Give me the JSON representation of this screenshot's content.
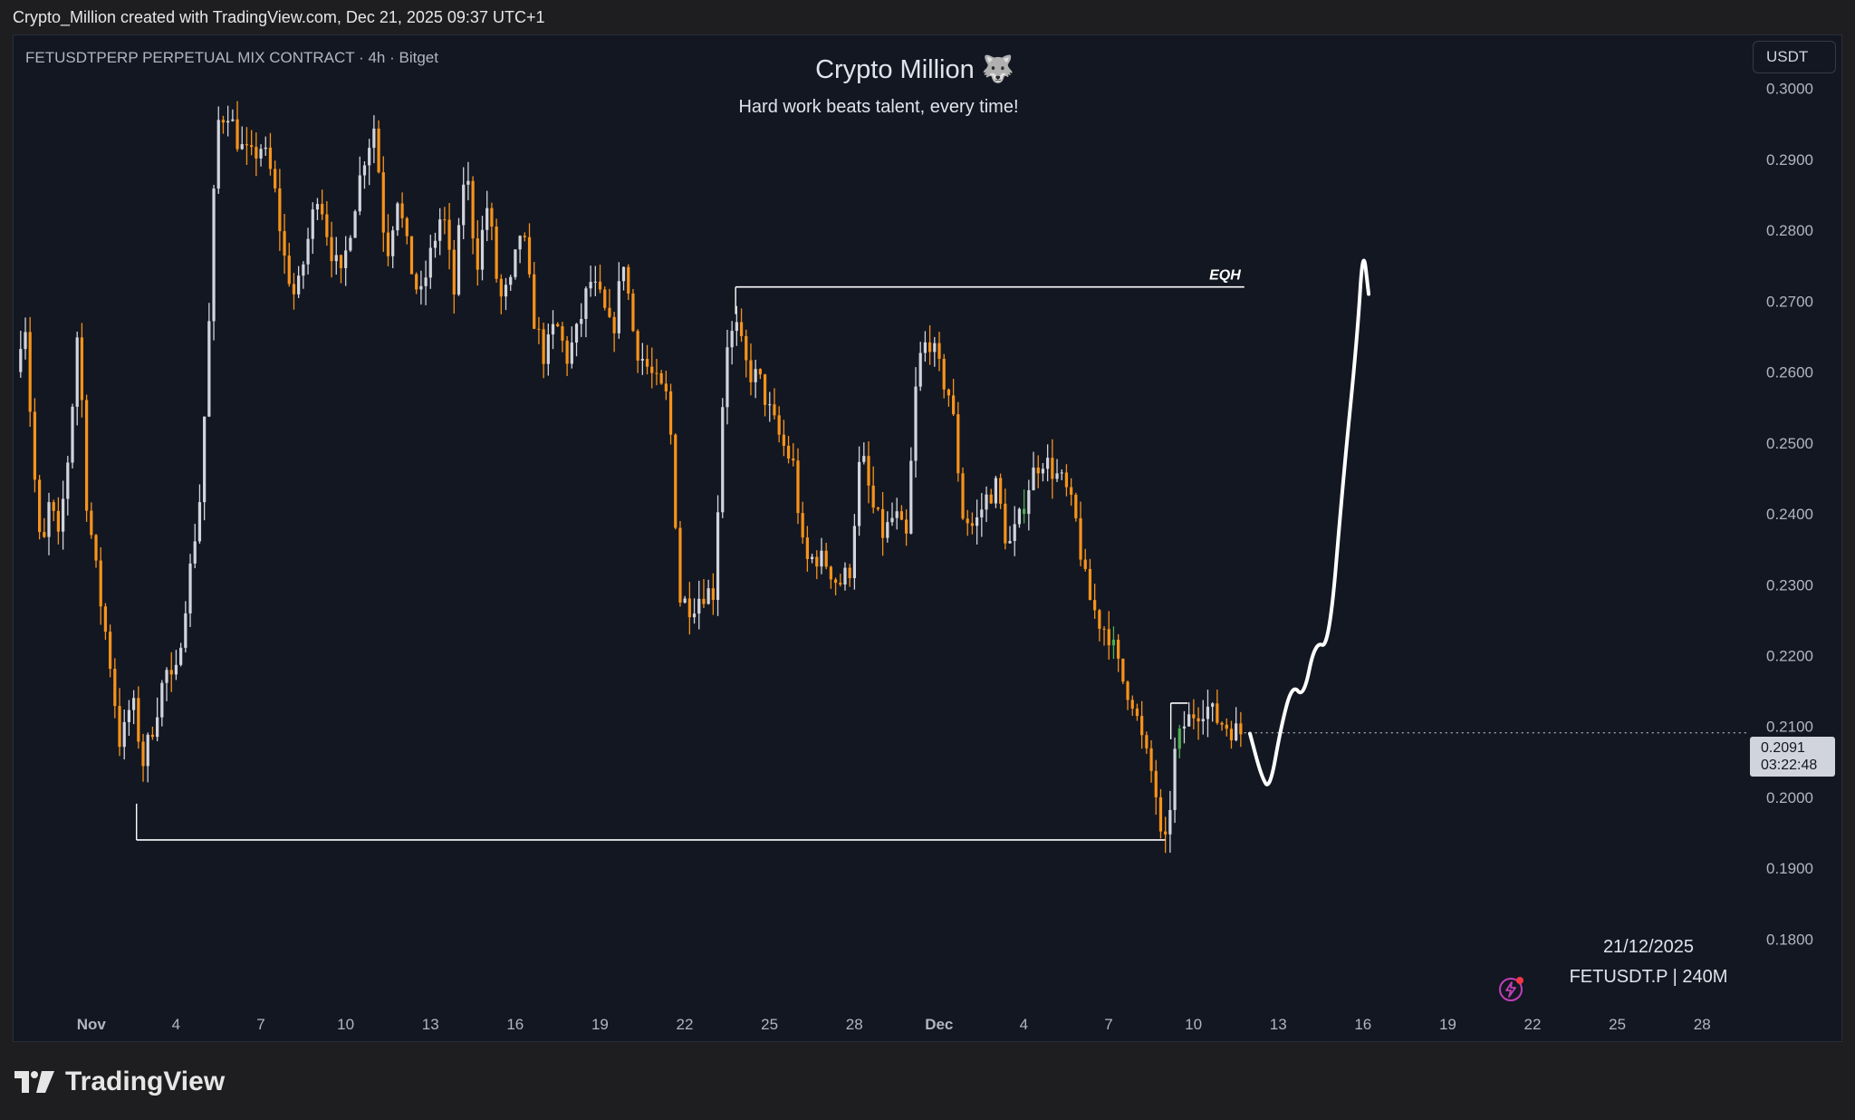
{
  "header": {
    "attribution": "Crypto_Million created with TradingView.com, Dec 21, 2025 09:37 UTC+1"
  },
  "chart_header": {
    "symbol_text": "FETUSDTPERP PERPETUAL MIX CONTRACT · 4h · Bitget"
  },
  "watermark": {
    "title": "Crypto Million 🐺",
    "subtitle": "Hard work beats talent, every time!"
  },
  "currency_button": "USDT",
  "last_price": {
    "value": "0.2091",
    "countdown": "03:22:48"
  },
  "info_box": {
    "date": "21/12/2025",
    "symbol": "FETUSDT.P | 240M"
  },
  "footer": {
    "brand": "TradingView"
  },
  "colors": {
    "background": "#131722",
    "bull_candle": "#d1d4dc",
    "bear_candle": "#f7931a",
    "highlight_candle": "#4caf50",
    "drawing": "#ffffff"
  },
  "chart_data": {
    "type": "candlestick",
    "ylim": [
      0.172,
      0.3075
    ],
    "y_ticks": [
      "0.3000",
      "0.2900",
      "0.2800",
      "0.2700",
      "0.2600",
      "0.2500",
      "0.2400",
      "0.2300",
      "0.2200",
      "0.2100",
      "0.2000",
      "0.1900",
      "0.1800"
    ],
    "x_ticks": [
      {
        "label": "Nov",
        "day": 0,
        "bold": true
      },
      {
        "label": "4",
        "day": 3
      },
      {
        "label": "7",
        "day": 6
      },
      {
        "label": "10",
        "day": 9
      },
      {
        "label": "13",
        "day": 12
      },
      {
        "label": "16",
        "day": 15
      },
      {
        "label": "19",
        "day": 18
      },
      {
        "label": "22",
        "day": 21
      },
      {
        "label": "25",
        "day": 24
      },
      {
        "label": "28",
        "day": 27
      },
      {
        "label": "Dec",
        "day": 30,
        "bold": true
      },
      {
        "label": "4",
        "day": 33
      },
      {
        "label": "7",
        "day": 36
      },
      {
        "label": "10",
        "day": 39
      },
      {
        "label": "13",
        "day": 42
      },
      {
        "label": "16",
        "day": 45
      },
      {
        "label": "19",
        "day": 48
      },
      {
        "label": "22",
        "day": 51
      },
      {
        "label": "25",
        "day": 54
      },
      {
        "label": "28",
        "day": 57
      }
    ],
    "x_start_day": -2.5,
    "candle_interval_days": 0.1667,
    "price_path": [
      [
        -2.5,
        0.26
      ],
      [
        -2.2,
        0.269
      ],
      [
        -1.9,
        0.248
      ],
      [
        -1.6,
        0.233
      ],
      [
        -1.3,
        0.242
      ],
      [
        -1.0,
        0.236
      ],
      [
        -0.6,
        0.25
      ],
      [
        -0.3,
        0.267
      ],
      [
        0.0,
        0.242
      ],
      [
        0.4,
        0.23
      ],
      [
        0.8,
        0.22
      ],
      [
        1.2,
        0.207
      ],
      [
        1.6,
        0.214
      ],
      [
        2.0,
        0.205
      ],
      [
        2.4,
        0.211
      ],
      [
        2.8,
        0.218
      ],
      [
        3.1,
        0.215
      ],
      [
        3.4,
        0.225
      ],
      [
        3.7,
        0.233
      ],
      [
        4.0,
        0.242
      ],
      [
        4.3,
        0.263
      ],
      [
        4.6,
        0.295
      ],
      [
        5.0,
        0.297
      ],
      [
        5.4,
        0.292
      ],
      [
        5.8,
        0.29
      ],
      [
        6.2,
        0.292
      ],
      [
        6.6,
        0.287
      ],
      [
        7.0,
        0.276
      ],
      [
        7.4,
        0.27
      ],
      [
        7.8,
        0.278
      ],
      [
        8.2,
        0.286
      ],
      [
        8.6,
        0.278
      ],
      [
        9.0,
        0.273
      ],
      [
        9.4,
        0.282
      ],
      [
        9.8,
        0.29
      ],
      [
        10.2,
        0.295
      ],
      [
        10.6,
        0.276
      ],
      [
        11.0,
        0.285
      ],
      [
        11.4,
        0.276
      ],
      [
        11.8,
        0.27
      ],
      [
        12.2,
        0.277
      ],
      [
        12.6,
        0.283
      ],
      [
        13.0,
        0.271
      ],
      [
        13.4,
        0.29
      ],
      [
        13.8,
        0.275
      ],
      [
        14.2,
        0.284
      ],
      [
        14.6,
        0.27
      ],
      [
        15.0,
        0.272
      ],
      [
        15.4,
        0.281
      ],
      [
        15.8,
        0.268
      ],
      [
        16.2,
        0.262
      ],
      [
        16.6,
        0.267
      ],
      [
        17.0,
        0.262
      ],
      [
        17.4,
        0.266
      ],
      [
        17.8,
        0.273
      ],
      [
        18.2,
        0.27
      ],
      [
        18.6,
        0.265
      ],
      [
        19.0,
        0.276
      ],
      [
        19.4,
        0.264
      ],
      [
        19.8,
        0.261
      ],
      [
        20.2,
        0.258
      ],
      [
        20.6,
        0.256
      ],
      [
        21.0,
        0.228
      ],
      [
        21.4,
        0.227
      ],
      [
        21.8,
        0.229
      ],
      [
        22.2,
        0.229
      ],
      [
        22.6,
        0.264
      ],
      [
        23.0,
        0.266
      ],
      [
        23.4,
        0.26
      ],
      [
        23.8,
        0.259
      ],
      [
        24.2,
        0.254
      ],
      [
        24.6,
        0.25
      ],
      [
        25.0,
        0.247
      ],
      [
        25.4,
        0.233
      ],
      [
        25.8,
        0.234
      ],
      [
        26.2,
        0.233
      ],
      [
        26.6,
        0.23
      ],
      [
        27.0,
        0.232
      ],
      [
        27.4,
        0.249
      ],
      [
        27.8,
        0.241
      ],
      [
        28.2,
        0.237
      ],
      [
        28.6,
        0.24
      ],
      [
        29.0,
        0.236
      ],
      [
        29.4,
        0.261
      ],
      [
        29.8,
        0.265
      ],
      [
        30.2,
        0.26
      ],
      [
        30.6,
        0.256
      ],
      [
        31.0,
        0.24
      ],
      [
        31.4,
        0.238
      ],
      [
        31.8,
        0.242
      ],
      [
        32.2,
        0.244
      ],
      [
        32.6,
        0.235
      ],
      [
        33.0,
        0.239
      ],
      [
        33.4,
        0.245
      ],
      [
        33.8,
        0.248
      ],
      [
        34.2,
        0.246
      ],
      [
        34.6,
        0.244
      ],
      [
        35.0,
        0.239
      ],
      [
        35.4,
        0.229
      ],
      [
        35.8,
        0.225
      ],
      [
        36.2,
        0.223
      ],
      [
        36.6,
        0.217
      ],
      [
        37.0,
        0.214
      ],
      [
        37.4,
        0.207
      ],
      [
        37.8,
        0.202
      ],
      [
        38.0,
        0.194
      ],
      [
        38.2,
        0.193
      ],
      [
        38.5,
        0.206
      ],
      [
        38.8,
        0.21
      ],
      [
        39.2,
        0.212
      ],
      [
        39.6,
        0.213
      ],
      [
        40.0,
        0.211
      ],
      [
        40.4,
        0.21
      ],
      [
        40.8,
        0.2091
      ]
    ],
    "green_candle_days": [
      33.0,
      36.2,
      38.5
    ],
    "levels": [
      {
        "name": "EQH",
        "price": 0.272,
        "from_day": 22.8,
        "to_day": 40.8,
        "label": "EQH"
      },
      {
        "name": "low",
        "price": 0.194,
        "from_day": 1.6,
        "to_day": 38.0,
        "label": ""
      },
      {
        "name": "range-top",
        "price": 0.2133,
        "from_day": 38.2,
        "to_day": 38.8,
        "label": ""
      }
    ],
    "projection": [
      [
        41.0,
        0.209
      ],
      [
        41.4,
        0.203
      ],
      [
        41.7,
        0.201
      ],
      [
        42.1,
        0.21
      ],
      [
        42.5,
        0.216
      ],
      [
        42.9,
        0.214
      ],
      [
        43.3,
        0.222
      ],
      [
        43.8,
        0.221
      ],
      [
        44.3,
        0.245
      ],
      [
        44.8,
        0.265
      ],
      [
        45.0,
        0.278
      ],
      [
        45.2,
        0.271
      ]
    ]
  }
}
